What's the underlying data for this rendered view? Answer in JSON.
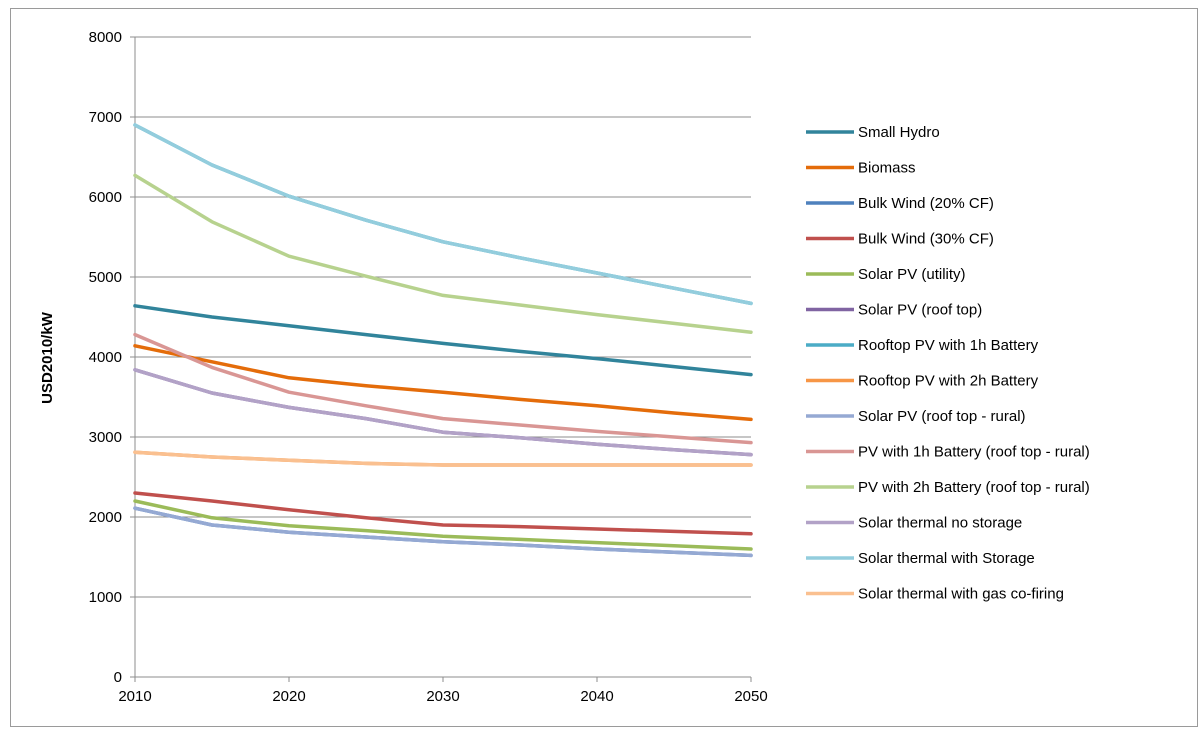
{
  "chart_data": {
    "type": "line",
    "title": "",
    "xlabel": "",
    "ylabel": "USD2010/kW",
    "xlim": [
      2010,
      2050
    ],
    "ylim": [
      0,
      8000
    ],
    "x_ticks": [
      "2010",
      "2020",
      "2030",
      "2040",
      "2050"
    ],
    "y_ticks": [
      "0",
      "1000",
      "2000",
      "3000",
      "4000",
      "5000",
      "6000",
      "7000",
      "8000"
    ],
    "grid": "horizontal",
    "legend_position": "right",
    "x": [
      2010,
      2015,
      2020,
      2025,
      2030,
      2035,
      2040,
      2045,
      2050
    ],
    "series": [
      {
        "name": "Small Hydro",
        "color": "#31849B",
        "values": [
          4640,
          4500,
          4390,
          4280,
          4170,
          4070,
          3980,
          3880,
          3780
        ]
      },
      {
        "name": "Biomass",
        "color": "#E46C0A",
        "values": [
          4140,
          3940,
          3740,
          3640,
          3560,
          3470,
          3390,
          3300,
          3220
        ]
      },
      {
        "name": "Bulk Wind (20% CF)",
        "color": "#4F81BD",
        "values": [
          2110,
          1900,
          1810,
          1750,
          1690,
          1650,
          1600,
          1560,
          1520
        ]
      },
      {
        "name": "Bulk Wind (30% CF)",
        "color": "#C0504D",
        "values": [
          2300,
          2200,
          2090,
          1990,
          1900,
          1880,
          1850,
          1820,
          1790
        ]
      },
      {
        "name": "Solar PV (utility)",
        "color": "#9BBB59",
        "values": [
          2200,
          1990,
          1890,
          1830,
          1760,
          1720,
          1680,
          1640,
          1600
        ]
      },
      {
        "name": "Solar PV (roof top)",
        "color": "#8064A2",
        "values": [
          3840,
          3550,
          3370,
          3230,
          3060,
          2990,
          2910,
          2840,
          2780
        ]
      },
      {
        "name": "Rooftop PV with 1h Battery",
        "color": "#4BACC6",
        "values": [
          6900,
          6400,
          6010,
          5710,
          5440,
          5240,
          5050,
          4860,
          4670
        ]
      },
      {
        "name": "Rooftop PV with 2h Battery",
        "color": "#F79646",
        "values": [
          2810,
          2750,
          2710,
          2670,
          2650,
          2650,
          2650,
          2650,
          2650
        ]
      },
      {
        "name": "Solar PV (roof top - rural)",
        "color": "#95A9D3",
        "values": [
          2110,
          1900,
          1810,
          1750,
          1690,
          1650,
          1600,
          1560,
          1520
        ]
      },
      {
        "name": "PV with 1h Battery (roof top - rural)",
        "color": "#D99694",
        "values": [
          4280,
          3870,
          3560,
          3390,
          3230,
          3150,
          3070,
          3000,
          2930
        ]
      },
      {
        "name": "PV with 2h Battery (roof top - rural)",
        "color": "#B7D28E",
        "values": [
          6270,
          5690,
          5260,
          5010,
          4770,
          4650,
          4530,
          4420,
          4310
        ]
      },
      {
        "name": "Solar thermal no storage",
        "color": "#B2A2C7",
        "values": [
          3840,
          3550,
          3370,
          3230,
          3060,
          2990,
          2910,
          2840,
          2780
        ]
      },
      {
        "name": "Solar thermal with Storage",
        "color": "#93CDDD",
        "values": [
          6900,
          6400,
          6010,
          5710,
          5440,
          5240,
          5050,
          4860,
          4670
        ]
      },
      {
        "name": "Solar thermal with gas co-firing",
        "color": "#FAC090",
        "values": [
          2810,
          2750,
          2710,
          2670,
          2650,
          2650,
          2650,
          2650,
          2650
        ]
      }
    ]
  }
}
